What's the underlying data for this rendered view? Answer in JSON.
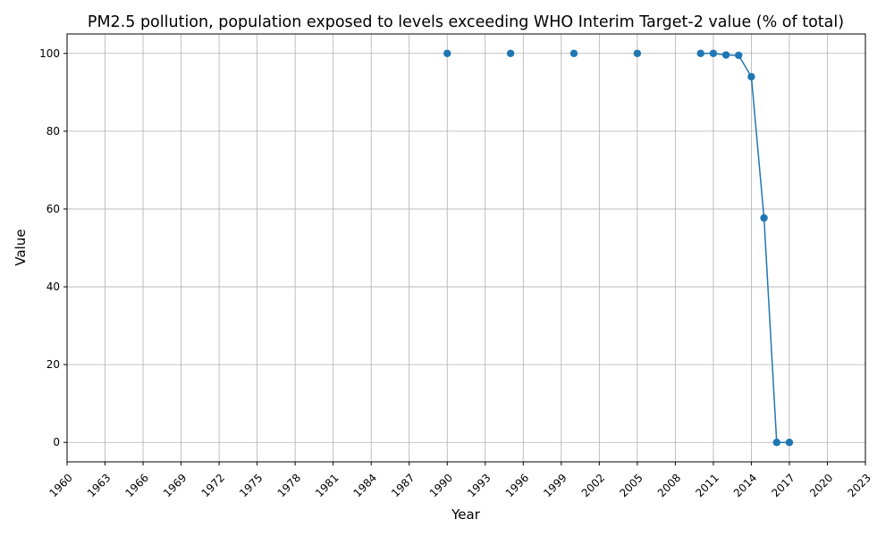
{
  "chart_data": {
    "type": "line",
    "title": "PM2.5 pollution, population exposed to levels exceeding WHO Interim Target-2 value (% of total)",
    "xlabel": "Year",
    "ylabel": "Value",
    "xlim": [
      1960,
      2023
    ],
    "ylim": [
      -5,
      105
    ],
    "xticks": [
      1960,
      1963,
      1966,
      1969,
      1972,
      1975,
      1978,
      1981,
      1984,
      1987,
      1990,
      1993,
      1996,
      1999,
      2002,
      2005,
      2008,
      2011,
      2014,
      2017,
      2020,
      2023
    ],
    "yticks": [
      0,
      20,
      40,
      60,
      80,
      100
    ],
    "grid": true,
    "color": "#1f77b4",
    "series": [
      {
        "points": [
          {
            "x": 1990,
            "y": 100.0
          },
          {
            "x": 1995,
            "y": 100.0
          },
          {
            "x": 2000,
            "y": 100.0
          },
          {
            "x": 2005,
            "y": 100.0
          },
          {
            "x": 2010,
            "y": 100.0
          },
          {
            "x": 2011,
            "y": 100.0
          },
          {
            "x": 2012,
            "y": 99.6
          },
          {
            "x": 2013,
            "y": 99.5
          },
          {
            "x": 2014,
            "y": 94.0
          },
          {
            "x": 2015,
            "y": 57.7
          },
          {
            "x": 2016,
            "y": 0.0
          },
          {
            "x": 2017,
            "y": 0.0
          }
        ],
        "segments": [
          [
            1990
          ],
          [
            1995
          ],
          [
            2000
          ],
          [
            2005
          ],
          [
            2010,
            2011,
            2012,
            2013,
            2014,
            2015,
            2016,
            2017
          ]
        ]
      }
    ]
  }
}
